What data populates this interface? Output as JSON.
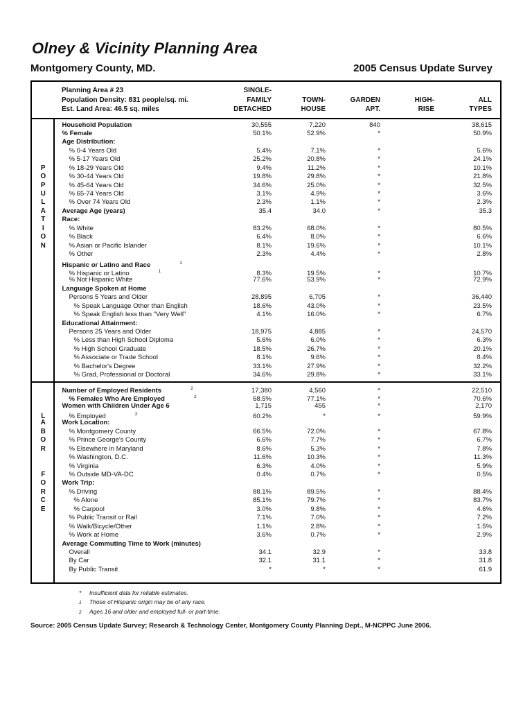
{
  "page": {
    "title": "Olney & Vicinity Planning Area",
    "subtitle_left": "Montgomery County, MD.",
    "subtitle_right": "2005 Census Update Survey"
  },
  "table": {
    "meta_lines": [
      "Planning Area # 23",
      "Population Density: 831 people/sq. mi.",
      "Est. Land Area: 46.5 sq. miles"
    ],
    "columns": [
      {
        "name": "single-family-detached",
        "lines": [
          "SINGLE-",
          "FAMILY",
          "DETACHED"
        ]
      },
      {
        "name": "town-house",
        "lines": [
          "",
          "TOWN-",
          "HOUSE"
        ]
      },
      {
        "name": "garden-apt",
        "lines": [
          "",
          "GARDEN",
          "APT."
        ]
      },
      {
        "name": "high-rise",
        "lines": [
          "",
          "HIGH-",
          "RISE"
        ]
      },
      {
        "name": "all-types",
        "lines": [
          "",
          "ALL",
          "TYPES"
        ]
      }
    ],
    "sections": [
      {
        "side_label": "POPULATION",
        "rows": [
          {
            "label": "Household Population",
            "bold": true,
            "indent": 0,
            "letter": "",
            "sup": "",
            "values": [
              "30,555",
              "7,220",
              "840",
              "",
              "38,615"
            ]
          },
          {
            "label": "% Female",
            "bold": true,
            "indent": 0,
            "letter": "",
            "sup": "",
            "values": [
              "50.1%",
              "52.9%",
              "*",
              "",
              "50.9%"
            ]
          },
          {
            "label": "Age Distribution:",
            "bold": true,
            "indent": 0,
            "letter": "",
            "sup": "",
            "values": [
              "",
              "",
              "",
              "",
              ""
            ]
          },
          {
            "label": "% 0-4 Years Old",
            "bold": false,
            "indent": 1,
            "letter": "",
            "sup": "",
            "values": [
              "5.4%",
              "7.1%",
              "*",
              "",
              "5.6%"
            ]
          },
          {
            "label": "% 5-17 Years Old",
            "bold": false,
            "indent": 1,
            "letter": "",
            "sup": "",
            "values": [
              "25.2%",
              "20.8%",
              "*",
              "",
              "24.1%"
            ]
          },
          {
            "label": "% 18-29 Years Old",
            "bold": false,
            "indent": 1,
            "letter": "P",
            "sup": "",
            "values": [
              "9.4%",
              "11.2%",
              "*",
              "",
              "10.1%"
            ]
          },
          {
            "label": "% 30-44 Years Old",
            "bold": false,
            "indent": 1,
            "letter": "O",
            "sup": "",
            "values": [
              "19.8%",
              "29.8%",
              "*",
              "",
              "21.8%"
            ]
          },
          {
            "label": "% 45-64 Years Old",
            "bold": false,
            "indent": 1,
            "letter": "P",
            "sup": "",
            "values": [
              "34.6%",
              "25.0%",
              "*",
              "",
              "32.5%"
            ]
          },
          {
            "label": "% 65-74 Years Old",
            "bold": false,
            "indent": 1,
            "letter": "U",
            "sup": "",
            "values": [
              "3.1%",
              "4.9%",
              "*",
              "",
              "3.6%"
            ]
          },
          {
            "label": "% Over 74 Years Old",
            "bold": false,
            "indent": 1,
            "letter": "L",
            "sup": "",
            "values": [
              "2.3%",
              "1.1%",
              "*",
              "",
              "2.3%"
            ]
          },
          {
            "label": "Average Age (years)",
            "bold": true,
            "indent": 0,
            "letter": "A",
            "sup": "",
            "values": [
              "35.4",
              "34.0",
              "*",
              "",
              "35.3"
            ]
          },
          {
            "label": "Race:",
            "bold": true,
            "indent": 0,
            "letter": "T",
            "sup": "",
            "values": [
              "",
              "",
              "",
              "",
              ""
            ]
          },
          {
            "label": "% White",
            "bold": false,
            "indent": 1,
            "letter": "I",
            "sup": "",
            "values": [
              "83.2%",
              "68.0%",
              "*",
              "",
              "80.5%"
            ]
          },
          {
            "label": "% Black",
            "bold": false,
            "indent": 1,
            "letter": "O",
            "sup": "",
            "values": [
              "6.4%",
              "8.0%",
              "*",
              "",
              "6.6%"
            ]
          },
          {
            "label": "% Asian or Pacific Islander",
            "bold": false,
            "indent": 1,
            "letter": "N",
            "sup": "",
            "values": [
              "8.1%",
              "19.6%",
              "*",
              "",
              "10.1%"
            ]
          },
          {
            "label": "% Other",
            "bold": false,
            "indent": 1,
            "letter": "",
            "sup": "",
            "values": [
              "2.3%",
              "4.4%",
              "*",
              "",
              "2.8%"
            ]
          },
          {
            "label": "Hispanic or Latino and Race",
            "bold": true,
            "indent": 0,
            "letter": "",
            "sup": "1",
            "values": [
              "",
              "",
              "",
              "",
              ""
            ]
          },
          {
            "label": "% Hispanic or Latino",
            "bold": false,
            "indent": 1,
            "letter": "",
            "sup": "1",
            "values": [
              "8.3%",
              "19.5%",
              "*",
              "",
              "10.7%"
            ]
          },
          {
            "label": "% Not Hispanic White",
            "bold": false,
            "indent": 1,
            "letter": "",
            "sup": "",
            "values": [
              "77.6%",
              "53.9%",
              "*",
              "",
              "72.9%"
            ]
          },
          {
            "label": "Language Spoken at Home",
            "bold": true,
            "indent": 0,
            "letter": "",
            "sup": "",
            "values": [
              "",
              "",
              "",
              "",
              ""
            ]
          },
          {
            "label": "Persons 5 Years and Older",
            "bold": false,
            "indent": 1,
            "letter": "",
            "sup": "",
            "values": [
              "28,895",
              "6,705",
              "*",
              "",
              "36,440"
            ]
          },
          {
            "label": "% Speak Language Other than English",
            "bold": false,
            "indent": 2,
            "letter": "",
            "sup": "",
            "values": [
              "18.6%",
              "43.0%",
              "*",
              "",
              "23.5%"
            ]
          },
          {
            "label": "% Speak English less than \"Very Well\"",
            "bold": false,
            "indent": 2,
            "letter": "",
            "sup": "",
            "values": [
              "4.1%",
              "16.0%",
              "*",
              "",
              "6.7%"
            ]
          },
          {
            "label": "Educational Attainment:",
            "bold": true,
            "indent": 0,
            "letter": "",
            "sup": "",
            "values": [
              "",
              "",
              "",
              "",
              ""
            ]
          },
          {
            "label": "Persons 25 Years and Older",
            "bold": false,
            "indent": 1,
            "letter": "",
            "sup": "",
            "values": [
              "18,975",
              "4,885",
              "*",
              "",
              "24,570"
            ]
          },
          {
            "label": "% Less than High School Diploma",
            "bold": false,
            "indent": 2,
            "letter": "",
            "sup": "",
            "values": [
              "5.6%",
              "6.0%",
              "*",
              "",
              "6.3%"
            ]
          },
          {
            "label": "% High School Graduate",
            "bold": false,
            "indent": 2,
            "letter": "",
            "sup": "",
            "values": [
              "18.5%",
              "26.7%",
              "*",
              "",
              "20.1%"
            ]
          },
          {
            "label": "% Associate or Trade School",
            "bold": false,
            "indent": 2,
            "letter": "",
            "sup": "",
            "values": [
              "8.1%",
              "9.6%",
              "*",
              "",
              "8.4%"
            ]
          },
          {
            "label": "% Bachelor's Degree",
            "bold": false,
            "indent": 2,
            "letter": "",
            "sup": "",
            "values": [
              "33.1%",
              "27.9%",
              "*",
              "",
              "32.2%"
            ]
          },
          {
            "label": "% Grad, Professional or Doctoral",
            "bold": false,
            "indent": 2,
            "letter": "",
            "sup": "",
            "values": [
              "34.6%",
              "29.8%",
              "*",
              "",
              "33.1%"
            ]
          }
        ]
      },
      {
        "side_label": "LABOR FORCE",
        "rows": [
          {
            "label": "Number of Employed Residents",
            "bold": true,
            "indent": 0,
            "letter": "",
            "sup": "2",
            "values": [
              "17,380",
              "4,560",
              "*",
              "",
              "22,510"
            ]
          },
          {
            "label": "% Females Who Are Employed",
            "bold": true,
            "indent": 1,
            "letter": "",
            "sup": "2",
            "values": [
              "68.5%",
              "77.1%",
              "*",
              "",
              "70.6%"
            ]
          },
          {
            "label": "Women with Children Under Age 6",
            "bold": true,
            "indent": 0,
            "letter": "",
            "sup": "",
            "values": [
              "1,715",
              "455",
              "*",
              "",
              "2,170"
            ]
          },
          {
            "label": "% Employed",
            "bold": false,
            "indent": 1,
            "letter": "L",
            "sup": "2",
            "values": [
              "60.2%",
              "*",
              "*",
              "",
              "59.9%"
            ]
          },
          {
            "label": "Work Location:",
            "bold": true,
            "indent": 0,
            "letter": "A",
            "sup": "",
            "values": [
              "",
              "",
              "",
              "",
              ""
            ]
          },
          {
            "label": "% Montgomery County",
            "bold": false,
            "indent": 1,
            "letter": "B",
            "sup": "",
            "values": [
              "66.5%",
              "72.0%",
              "*",
              "",
              "67.8%"
            ]
          },
          {
            "label": "% Prince George's County",
            "bold": false,
            "indent": 1,
            "letter": "O",
            "sup": "",
            "values": [
              "6.6%",
              "7.7%",
              "*",
              "",
              "6.7%"
            ]
          },
          {
            "label": "% Elsewhere in Maryland",
            "bold": false,
            "indent": 1,
            "letter": "R",
            "sup": "",
            "values": [
              "8.6%",
              "5.3%",
              "*",
              "",
              "7.8%"
            ]
          },
          {
            "label": "% Washington, D.C.",
            "bold": false,
            "indent": 1,
            "letter": "",
            "sup": "",
            "values": [
              "11.6%",
              "10.3%",
              "*",
              "",
              "11.3%"
            ]
          },
          {
            "label": "% Virginia",
            "bold": false,
            "indent": 1,
            "letter": "",
            "sup": "",
            "values": [
              "6.3%",
              "4.0%",
              "*",
              "",
              "5.9%"
            ]
          },
          {
            "label": "% Outside MD-VA-DC",
            "bold": false,
            "indent": 1,
            "letter": "F",
            "sup": "",
            "values": [
              "0.4%",
              "0.7%",
              "*",
              "",
              "0.5%"
            ]
          },
          {
            "label": "Work Trip:",
            "bold": true,
            "indent": 0,
            "letter": "O",
            "sup": "",
            "values": [
              "",
              "",
              "",
              "",
              ""
            ]
          },
          {
            "label": "% Driving",
            "bold": false,
            "indent": 1,
            "letter": "R",
            "sup": "",
            "values": [
              "88.1%",
              "89.5%",
              "*",
              "",
              "88.4%"
            ]
          },
          {
            "label": "% Alone",
            "bold": false,
            "indent": 2,
            "letter": "C",
            "sup": "",
            "values": [
              "85.1%",
              "79.7%",
              "*",
              "",
              "83.7%"
            ]
          },
          {
            "label": "% Carpool",
            "bold": false,
            "indent": 2,
            "letter": "E",
            "sup": "",
            "values": [
              "3.0%",
              "9.8%",
              "*",
              "",
              "4.6%"
            ]
          },
          {
            "label": "% Public Transit or Rail",
            "bold": false,
            "indent": 1,
            "letter": "",
            "sup": "",
            "values": [
              "7.1%",
              "7.0%",
              "*",
              "",
              "7.2%"
            ]
          },
          {
            "label": "% Walk/Bicycle/Other",
            "bold": false,
            "indent": 1,
            "letter": "",
            "sup": "",
            "values": [
              "1.1%",
              "2.8%",
              "*",
              "",
              "1.5%"
            ]
          },
          {
            "label": "% Work at Home",
            "bold": false,
            "indent": 1,
            "letter": "",
            "sup": "",
            "values": [
              "3.6%",
              "0.7%",
              "*",
              "",
              "2.9%"
            ]
          },
          {
            "label": "Average Commuting Time to Work (minutes)",
            "bold": true,
            "indent": 0,
            "letter": "",
            "sup": "",
            "values": [
              "",
              "",
              "",
              "",
              ""
            ]
          },
          {
            "label": "Overall",
            "bold": false,
            "indent": 1,
            "letter": "",
            "sup": "",
            "values": [
              "34.1",
              "32.9",
              "*",
              "",
              "33.8"
            ]
          },
          {
            "label": "By Car",
            "bold": false,
            "indent": 1,
            "letter": "",
            "sup": "",
            "values": [
              "32.1",
              "31.1",
              "*",
              "",
              "31.8"
            ]
          },
          {
            "label": "By Public Transit",
            "bold": false,
            "indent": 1,
            "letter": "",
            "sup": "",
            "values": [
              "*",
              "*",
              "*",
              "",
              "61.9"
            ]
          }
        ]
      }
    ]
  },
  "footnotes": [
    {
      "marker": "*",
      "superscript": false,
      "text": "Insufficient data for reliable estimates."
    },
    {
      "marker": "1",
      "superscript": true,
      "text": "Those of Hispanic origin may be of any race."
    },
    {
      "marker": "2",
      "superscript": true,
      "text": "Ages 16 and older and employed full- or part-time."
    }
  ],
  "source": "Source:  2005 Census Update Survey; Research & Technology Center,  Montgomery County Planning Dept., M-NCPPC June 2006."
}
